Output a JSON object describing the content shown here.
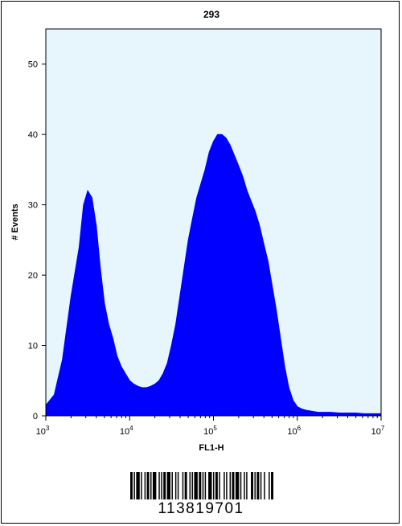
{
  "chart_data": {
    "type": "area",
    "title": "293",
    "xlabel": "FL1-H",
    "ylabel": "# Events",
    "x_scale": "log",
    "xlim": [
      1000,
      10000000
    ],
    "ylim": [
      0,
      55
    ],
    "x_ticks": [
      {
        "value": 1000,
        "base": "10",
        "exp": "3"
      },
      {
        "value": 10000,
        "base": "10",
        "exp": "4"
      },
      {
        "value": 100000,
        "base": "10",
        "exp": "5"
      },
      {
        "value": 1000000,
        "base": "10",
        "exp": "6"
      },
      {
        "value": 10000000,
        "base": "10",
        "exp": "7"
      }
    ],
    "y_ticks": [
      0,
      10,
      20,
      30,
      40,
      50
    ],
    "grid": false,
    "legend": "none",
    "colors": {
      "fill": "#0000ff",
      "plot_background": "#e6f6fc"
    },
    "series": [
      {
        "x": [
          1000,
          1260,
          1580,
          2000,
          2500,
          2820,
          3160,
          3550,
          4000,
          4470,
          5000,
          5620,
          6310,
          7080,
          7940,
          8910,
          10000,
          11200,
          12600,
          14100,
          15800,
          17800,
          20000,
          22400,
          25100,
          28200,
          31600,
          35500,
          39800,
          44700,
          50100,
          56200,
          63100,
          70800,
          79400,
          89100,
          100000,
          112000,
          126000,
          141000,
          158000,
          178000,
          200000,
          224000,
          251000,
          282000,
          316000,
          355000,
          398000,
          447000,
          501000,
          562000,
          631000,
          708000,
          794000,
          891000,
          1000000,
          1120000,
          1260000,
          1410000,
          1580000,
          1780000,
          2000000,
          2510000,
          3160000,
          3980000,
          5010000,
          6310000,
          7940000,
          10000000
        ],
        "values": [
          1.5,
          3,
          8,
          17,
          24,
          30,
          32,
          31,
          27,
          21,
          16,
          13,
          11,
          8.5,
          7,
          6,
          5,
          4.5,
          4.2,
          4,
          4,
          4.2,
          4.5,
          5,
          6,
          7.5,
          10,
          13,
          17,
          21,
          25,
          28,
          31,
          33,
          35,
          37.5,
          39,
          40,
          40,
          39.5,
          38.5,
          37,
          35.5,
          34,
          32,
          30.5,
          29,
          27,
          24.5,
          22,
          18.5,
          15,
          11,
          7,
          4,
          2.2,
          1.3,
          1,
          0.8,
          0.7,
          0.6,
          0.5,
          0.5,
          0.5,
          0.4,
          0.4,
          0.4,
          0.3,
          0.3,
          0.3
        ]
      }
    ]
  },
  "barcode": {
    "number": "113819701"
  }
}
